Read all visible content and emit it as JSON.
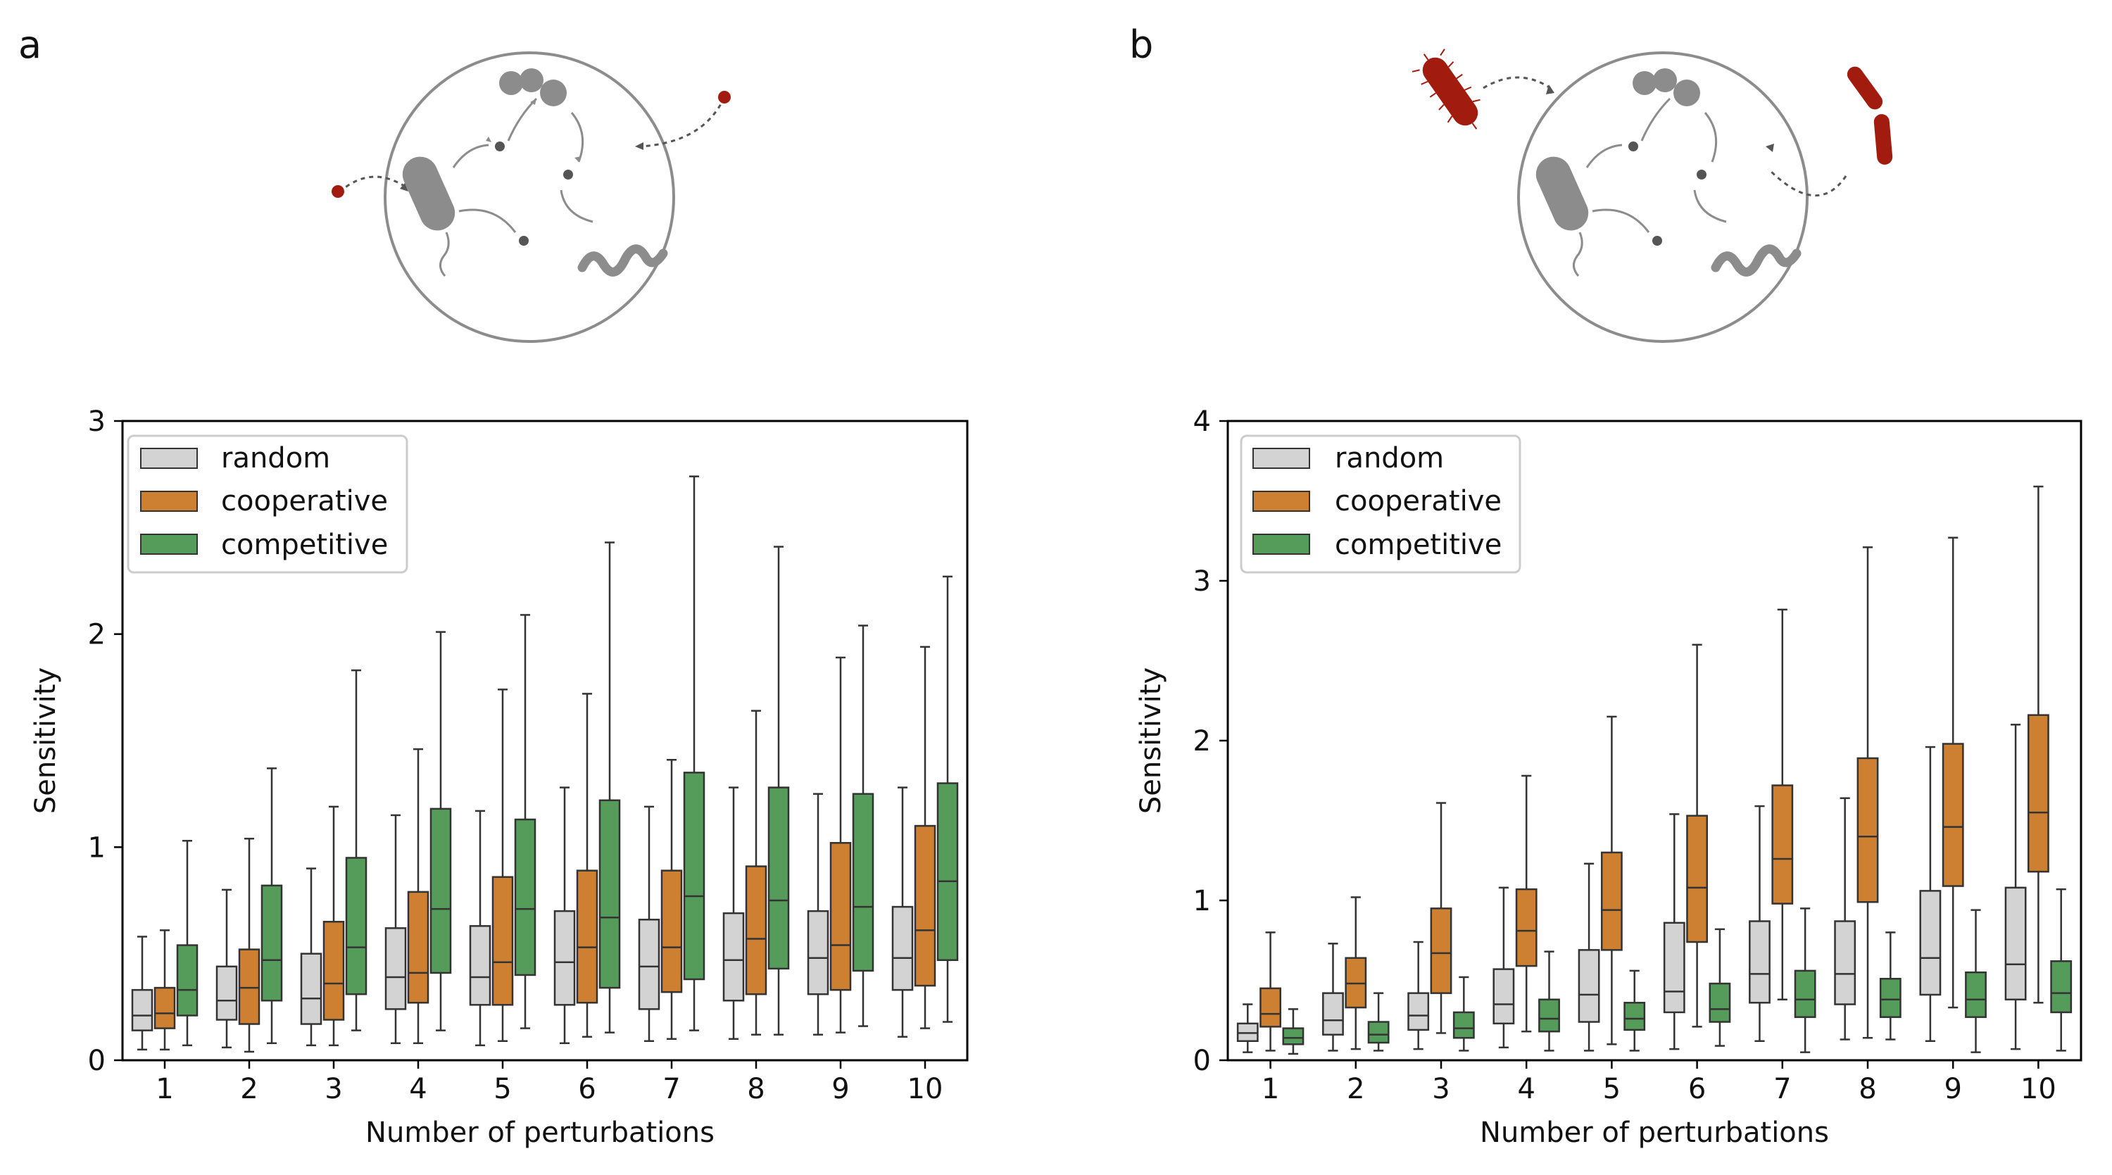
{
  "panels": [
    {
      "letter": "a",
      "illustration": "microbial-community-small-molecule-perturbations"
    },
    {
      "letter": "b",
      "illustration": "microbial-community-species-perturbations"
    }
  ],
  "colors": {
    "random": "#d3d3d3",
    "cooperative": "#cd7f32",
    "competitive": "#559b59",
    "community_gray": "#8c8c8c",
    "perturbation_red": "#a11c0e"
  },
  "chart_data": [
    {
      "type": "box",
      "panel": "a",
      "xlabel": "Number of perturbations",
      "ylabel": "Sensitivity",
      "ylim": [
        0,
        3
      ],
      "yticks": [
        "0",
        "1",
        "2",
        "3"
      ],
      "categories": [
        "1",
        "2",
        "3",
        "4",
        "5",
        "6",
        "7",
        "8",
        "9",
        "10"
      ],
      "legend": {
        "position": "top-left",
        "entries": [
          "random",
          "cooperative",
          "competitive"
        ]
      },
      "series": [
        {
          "name": "random",
          "color": "#d3d3d3",
          "boxes": [
            {
              "whislo": 0.05,
              "q1": 0.14,
              "med": 0.21,
              "q3": 0.33,
              "whishi": 0.58
            },
            {
              "whislo": 0.06,
              "q1": 0.19,
              "med": 0.28,
              "q3": 0.44,
              "whishi": 0.8
            },
            {
              "whislo": 0.07,
              "q1": 0.17,
              "med": 0.29,
              "q3": 0.5,
              "whishi": 0.9
            },
            {
              "whislo": 0.08,
              "q1": 0.24,
              "med": 0.39,
              "q3": 0.62,
              "whishi": 1.15
            },
            {
              "whislo": 0.07,
              "q1": 0.26,
              "med": 0.39,
              "q3": 0.63,
              "whishi": 1.17
            },
            {
              "whislo": 0.08,
              "q1": 0.26,
              "med": 0.46,
              "q3": 0.7,
              "whishi": 1.28
            },
            {
              "whislo": 0.09,
              "q1": 0.24,
              "med": 0.44,
              "q3": 0.66,
              "whishi": 1.19
            },
            {
              "whislo": 0.1,
              "q1": 0.28,
              "med": 0.47,
              "q3": 0.69,
              "whishi": 1.28
            },
            {
              "whislo": 0.12,
              "q1": 0.31,
              "med": 0.48,
              "q3": 0.7,
              "whishi": 1.25
            },
            {
              "whislo": 0.11,
              "q1": 0.33,
              "med": 0.48,
              "q3": 0.72,
              "whishi": 1.28
            }
          ]
        },
        {
          "name": "cooperative",
          "color": "#cd7f32",
          "boxes": [
            {
              "whislo": 0.05,
              "q1": 0.15,
              "med": 0.22,
              "q3": 0.34,
              "whishi": 0.61
            },
            {
              "whislo": 0.04,
              "q1": 0.17,
              "med": 0.34,
              "q3": 0.52,
              "whishi": 1.04
            },
            {
              "whislo": 0.07,
              "q1": 0.19,
              "med": 0.36,
              "q3": 0.65,
              "whishi": 1.19
            },
            {
              "whislo": 0.08,
              "q1": 0.27,
              "med": 0.41,
              "q3": 0.79,
              "whishi": 1.46
            },
            {
              "whislo": 0.09,
              "q1": 0.26,
              "med": 0.46,
              "q3": 0.86,
              "whishi": 1.74
            },
            {
              "whislo": 0.11,
              "q1": 0.27,
              "med": 0.53,
              "q3": 0.89,
              "whishi": 1.72
            },
            {
              "whislo": 0.1,
              "q1": 0.32,
              "med": 0.53,
              "q3": 0.89,
              "whishi": 1.41
            },
            {
              "whislo": 0.12,
              "q1": 0.31,
              "med": 0.57,
              "q3": 0.91,
              "whishi": 1.64
            },
            {
              "whislo": 0.13,
              "q1": 0.33,
              "med": 0.54,
              "q3": 1.02,
              "whishi": 1.89
            },
            {
              "whislo": 0.15,
              "q1": 0.35,
              "med": 0.61,
              "q3": 1.1,
              "whishi": 1.94
            }
          ]
        },
        {
          "name": "competitive",
          "color": "#559b59",
          "boxes": [
            {
              "whislo": 0.07,
              "q1": 0.21,
              "med": 0.33,
              "q3": 0.54,
              "whishi": 1.03
            },
            {
              "whislo": 0.08,
              "q1": 0.28,
              "med": 0.47,
              "q3": 0.82,
              "whishi": 1.37
            },
            {
              "whislo": 0.14,
              "q1": 0.31,
              "med": 0.53,
              "q3": 0.95,
              "whishi": 1.83
            },
            {
              "whislo": 0.14,
              "q1": 0.41,
              "med": 0.71,
              "q3": 1.18,
              "whishi": 2.01
            },
            {
              "whislo": 0.15,
              "q1": 0.4,
              "med": 0.71,
              "q3": 1.13,
              "whishi": 2.09
            },
            {
              "whislo": 0.13,
              "q1": 0.34,
              "med": 0.67,
              "q3": 1.22,
              "whishi": 2.43
            },
            {
              "whislo": 0.14,
              "q1": 0.38,
              "med": 0.77,
              "q3": 1.35,
              "whishi": 2.74
            },
            {
              "whislo": 0.12,
              "q1": 0.43,
              "med": 0.75,
              "q3": 1.28,
              "whishi": 2.41
            },
            {
              "whislo": 0.16,
              "q1": 0.42,
              "med": 0.72,
              "q3": 1.25,
              "whishi": 2.04
            },
            {
              "whislo": 0.18,
              "q1": 0.47,
              "med": 0.84,
              "q3": 1.3,
              "whishi": 2.27
            }
          ]
        }
      ]
    },
    {
      "type": "box",
      "panel": "b",
      "xlabel": "Number of perturbations",
      "ylabel": "Sensitivity",
      "ylim": [
        0,
        4
      ],
      "yticks": [
        "0",
        "1",
        "2",
        "3",
        "4"
      ],
      "categories": [
        "1",
        "2",
        "3",
        "4",
        "5",
        "6",
        "7",
        "8",
        "9",
        "10"
      ],
      "legend": {
        "position": "top-left",
        "entries": [
          "random",
          "cooperative",
          "competitive"
        ]
      },
      "series": [
        {
          "name": "random",
          "color": "#d3d3d3",
          "boxes": [
            {
              "whislo": 0.05,
              "q1": 0.12,
              "med": 0.17,
              "q3": 0.23,
              "whishi": 0.35
            },
            {
              "whislo": 0.06,
              "q1": 0.16,
              "med": 0.25,
              "q3": 0.42,
              "whishi": 0.73
            },
            {
              "whislo": 0.07,
              "q1": 0.19,
              "med": 0.28,
              "q3": 0.42,
              "whishi": 0.74
            },
            {
              "whislo": 0.08,
              "q1": 0.23,
              "med": 0.35,
              "q3": 0.57,
              "whishi": 1.08
            },
            {
              "whislo": 0.06,
              "q1": 0.24,
              "med": 0.41,
              "q3": 0.69,
              "whishi": 1.23
            },
            {
              "whislo": 0.07,
              "q1": 0.3,
              "med": 0.43,
              "q3": 0.86,
              "whishi": 1.54
            },
            {
              "whislo": 0.12,
              "q1": 0.36,
              "med": 0.54,
              "q3": 0.87,
              "whishi": 1.59
            },
            {
              "whislo": 0.13,
              "q1": 0.35,
              "med": 0.54,
              "q3": 0.87,
              "whishi": 1.64
            },
            {
              "whislo": 0.12,
              "q1": 0.41,
              "med": 0.64,
              "q3": 1.06,
              "whishi": 1.96
            },
            {
              "whislo": 0.07,
              "q1": 0.38,
              "med": 0.6,
              "q3": 1.08,
              "whishi": 2.1
            }
          ]
        },
        {
          "name": "cooperative",
          "color": "#cd7f32",
          "boxes": [
            {
              "whislo": 0.06,
              "q1": 0.21,
              "med": 0.29,
              "q3": 0.45,
              "whishi": 0.8
            },
            {
              "whislo": 0.07,
              "q1": 0.33,
              "med": 0.48,
              "q3": 0.64,
              "whishi": 1.02
            },
            {
              "whislo": 0.17,
              "q1": 0.42,
              "med": 0.67,
              "q3": 0.95,
              "whishi": 1.61
            },
            {
              "whislo": 0.18,
              "q1": 0.59,
              "med": 0.81,
              "q3": 1.07,
              "whishi": 1.78
            },
            {
              "whislo": 0.1,
              "q1": 0.69,
              "med": 0.94,
              "q3": 1.3,
              "whishi": 2.15
            },
            {
              "whislo": 0.21,
              "q1": 0.74,
              "med": 1.08,
              "q3": 1.53,
              "whishi": 2.6
            },
            {
              "whislo": 0.38,
              "q1": 0.98,
              "med": 1.26,
              "q3": 1.72,
              "whishi": 2.82
            },
            {
              "whislo": 0.14,
              "q1": 0.99,
              "med": 1.4,
              "q3": 1.89,
              "whishi": 3.21
            },
            {
              "whislo": 0.33,
              "q1": 1.09,
              "med": 1.46,
              "q3": 1.98,
              "whishi": 3.27
            },
            {
              "whislo": 0.36,
              "q1": 1.18,
              "med": 1.55,
              "q3": 2.16,
              "whishi": 3.59
            }
          ]
        },
        {
          "name": "competitive",
          "color": "#559b59",
          "boxes": [
            {
              "whislo": 0.04,
              "q1": 0.1,
              "med": 0.14,
              "q3": 0.2,
              "whishi": 0.32
            },
            {
              "whislo": 0.06,
              "q1": 0.11,
              "med": 0.16,
              "q3": 0.24,
              "whishi": 0.42
            },
            {
              "whislo": 0.06,
              "q1": 0.14,
              "med": 0.2,
              "q3": 0.3,
              "whishi": 0.52
            },
            {
              "whislo": 0.06,
              "q1": 0.18,
              "med": 0.26,
              "q3": 0.38,
              "whishi": 0.68
            },
            {
              "whislo": 0.06,
              "q1": 0.19,
              "med": 0.26,
              "q3": 0.36,
              "whishi": 0.56
            },
            {
              "whislo": 0.09,
              "q1": 0.24,
              "med": 0.32,
              "q3": 0.48,
              "whishi": 0.82
            },
            {
              "whislo": 0.05,
              "q1": 0.27,
              "med": 0.38,
              "q3": 0.56,
              "whishi": 0.95
            },
            {
              "whislo": 0.13,
              "q1": 0.27,
              "med": 0.38,
              "q3": 0.51,
              "whishi": 0.8
            },
            {
              "whislo": 0.05,
              "q1": 0.27,
              "med": 0.38,
              "q3": 0.55,
              "whishi": 0.94
            },
            {
              "whislo": 0.06,
              "q1": 0.3,
              "med": 0.42,
              "q3": 0.62,
              "whishi": 1.07
            }
          ]
        }
      ]
    }
  ]
}
